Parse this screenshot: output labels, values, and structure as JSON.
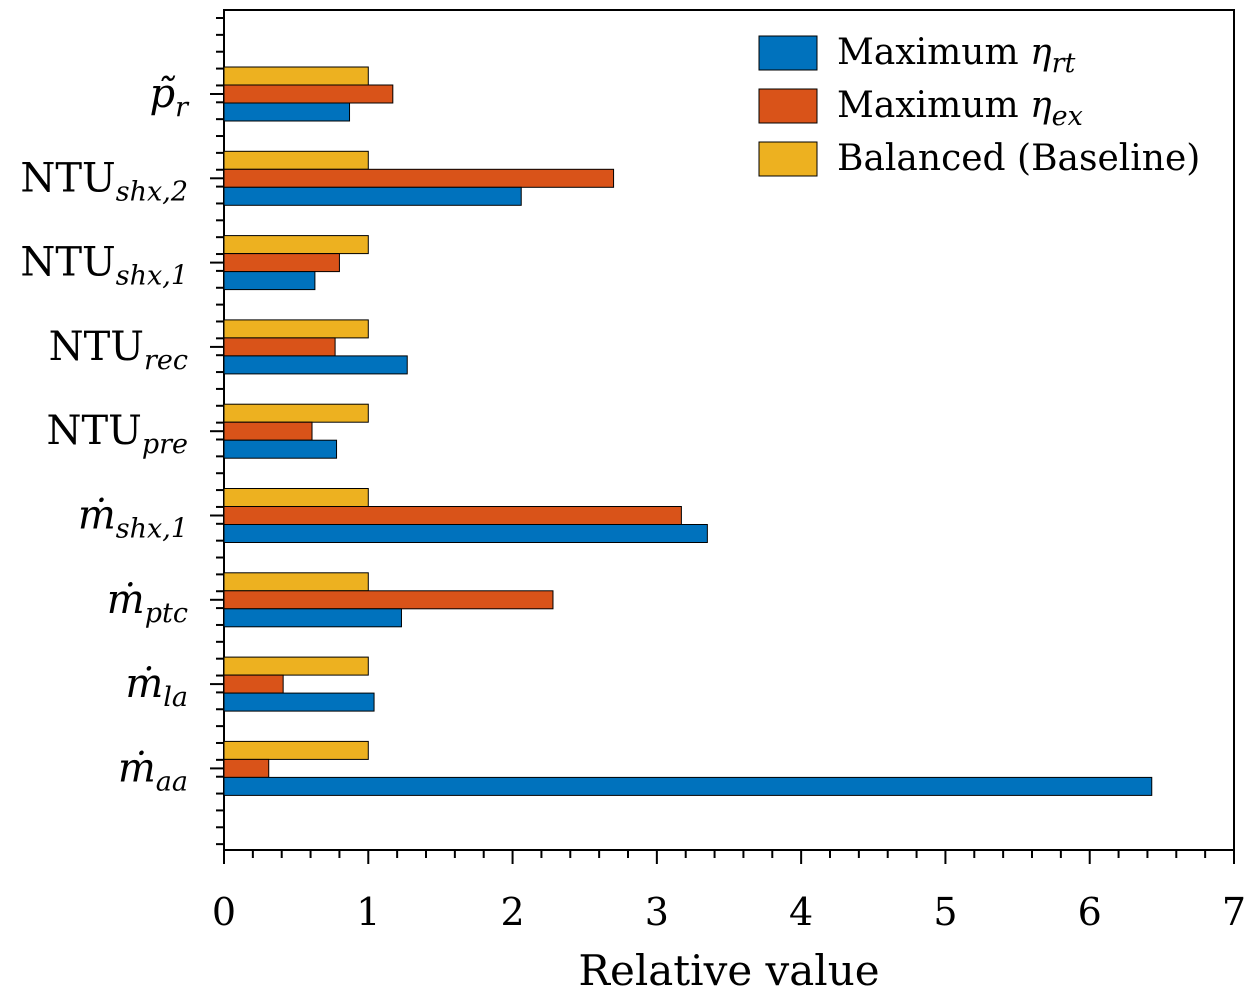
{
  "chart_data": {
    "type": "bar",
    "orientation": "horizontal",
    "xlabel": "Relative value",
    "xlim": [
      0,
      7
    ],
    "xticks": [
      "0",
      "1",
      "2",
      "3",
      "4",
      "5",
      "6",
      "7"
    ],
    "categories": [
      {
        "base": "p̃",
        "sub": "r",
        "italic_base": true
      },
      {
        "base": "NTU",
        "sub": "shx,2",
        "italic_base": false
      },
      {
        "base": "NTU",
        "sub": "shx,1",
        "italic_base": false
      },
      {
        "base": "NTU",
        "sub": "rec",
        "italic_base": false
      },
      {
        "base": "NTU",
        "sub": "pre",
        "italic_base": false
      },
      {
        "base": "ṁ",
        "sub": "shx,1",
        "italic_base": true
      },
      {
        "base": "ṁ",
        "sub": "ptc",
        "italic_base": true
      },
      {
        "base": "ṁ",
        "sub": "la",
        "italic_base": true
      },
      {
        "base": "ṁ",
        "sub": "aa",
        "italic_base": true
      }
    ],
    "series": [
      {
        "name": "Maximum η",
        "name_sub": "rt",
        "color": "#0072BD",
        "values": [
          0.87,
          2.06,
          0.63,
          1.27,
          0.78,
          3.35,
          1.23,
          1.04,
          6.43
        ]
      },
      {
        "name": "Maximum η",
        "name_sub": "ex",
        "color": "#D95319",
        "values": [
          1.17,
          2.7,
          0.8,
          0.77,
          0.61,
          3.17,
          2.28,
          0.41,
          0.31
        ]
      },
      {
        "name": "Balanced (Baseline)",
        "name_sub": "",
        "color": "#EDB120",
        "values": [
          1.0,
          1.0,
          1.0,
          1.0,
          1.0,
          1.0,
          1.0,
          1.0,
          1.0
        ]
      }
    ],
    "legend": "top-right",
    "grid": false
  }
}
